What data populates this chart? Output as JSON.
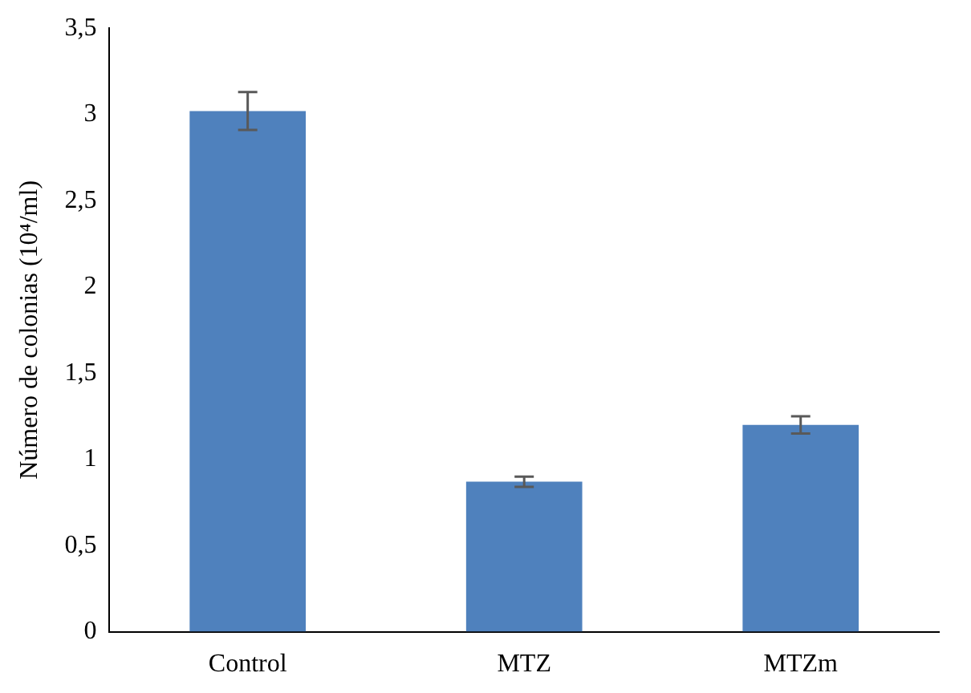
{
  "chart_data": {
    "type": "bar",
    "ylabel": "Número de colonias (10⁴/ml)",
    "categories": [
      "Control",
      "MTZ",
      "MTZm"
    ],
    "values": [
      3.02,
      0.87,
      1.2
    ],
    "color": "#4f81bd",
    "errors": [
      0.11,
      0.03,
      0.05
    ],
    "ylim": [
      0,
      3.5
    ],
    "yticks": [
      0,
      {
        "value": 0.5,
        "label": "0,5"
      },
      1,
      {
        "value": 1.5,
        "label": "1,5"
      },
      2,
      {
        "value": 2.5,
        "label": "2,5"
      },
      3,
      {
        "value": 3.5,
        "label": "3,5"
      }
    ],
    "grid": false,
    "legend": false
  }
}
